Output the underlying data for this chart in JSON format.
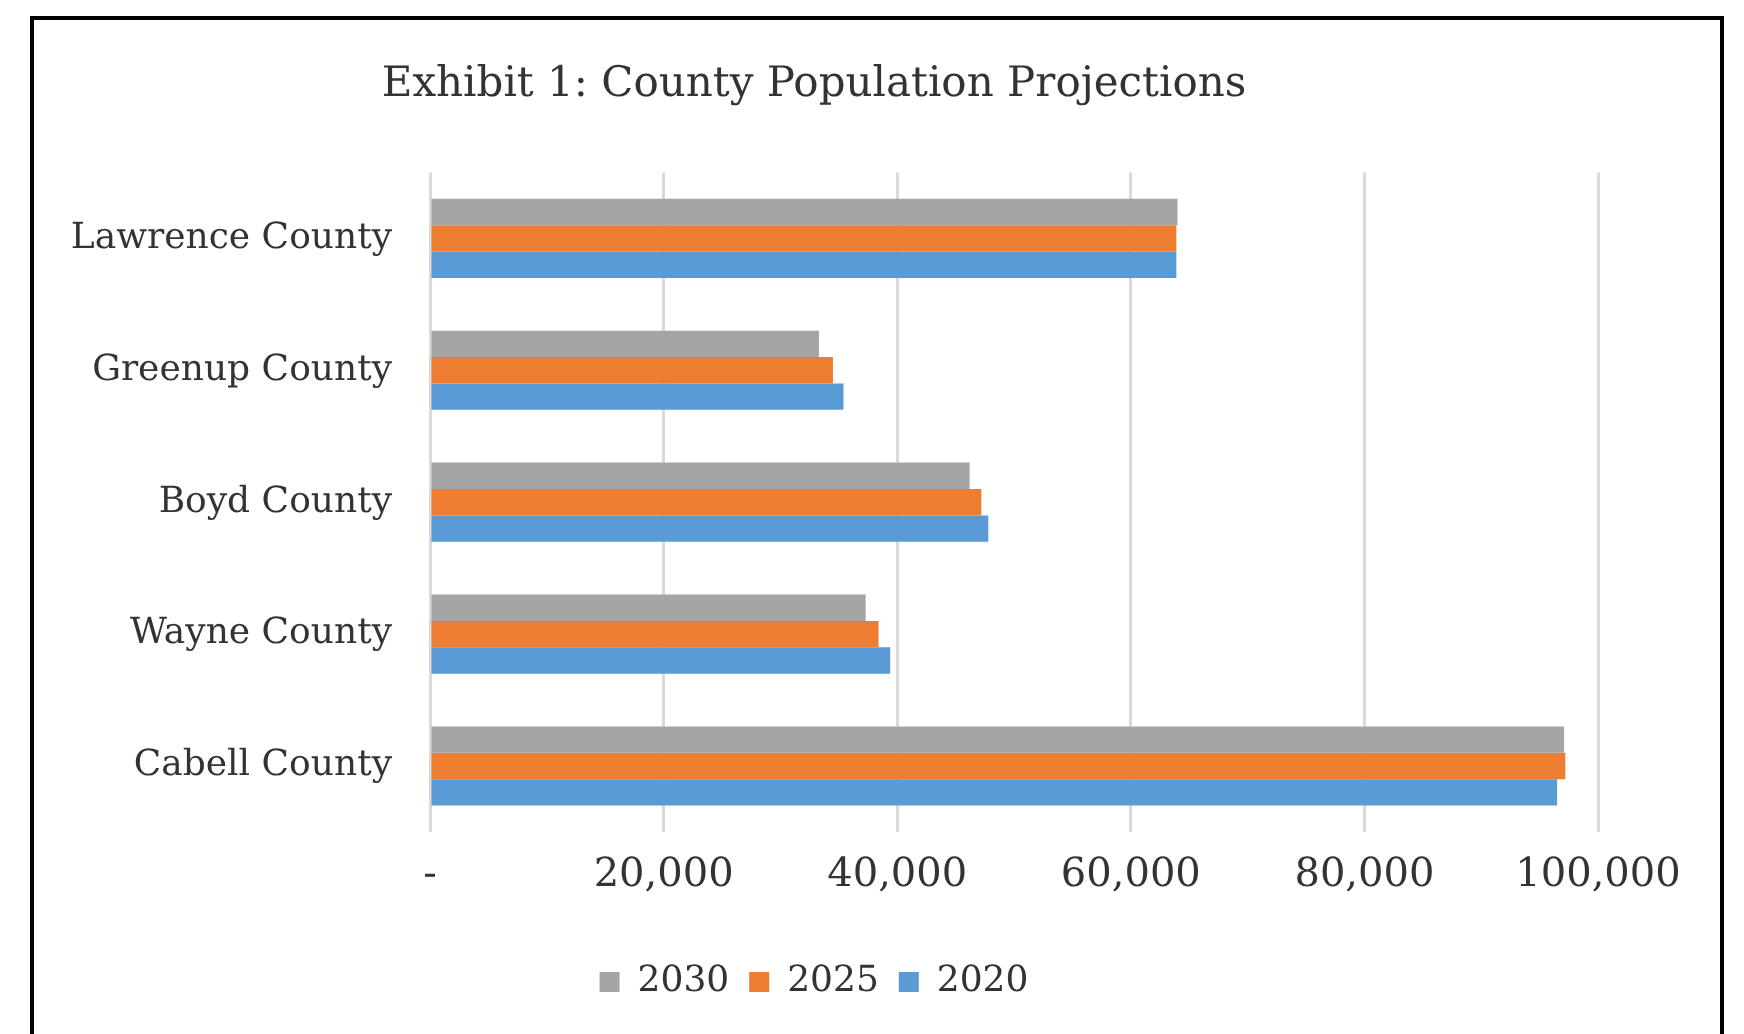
{
  "chart_data": {
    "type": "bar",
    "orientation": "horizontal",
    "title": "Exhibit 1: County Population Projections",
    "categories": [
      "Lawrence County",
      "Greenup County",
      "Boyd County",
      "Wayne County",
      "Cabell County"
    ],
    "series": [
      {
        "name": "2030",
        "color": "#a5a5a5",
        "values": [
          64000,
          33300,
          46200,
          37300,
          97100
        ]
      },
      {
        "name": "2025",
        "color": "#ed7d31",
        "values": [
          63900,
          34500,
          47200,
          38400,
          97200
        ]
      },
      {
        "name": "2020",
        "color": "#5b9bd5",
        "values": [
          63900,
          35400,
          47800,
          39400,
          96500
        ]
      }
    ],
    "xlim": [
      0,
      100000
    ],
    "xticks": [
      {
        "value": 0,
        "label": "-"
      },
      {
        "value": 20000,
        "label": "20,000"
      },
      {
        "value": 40000,
        "label": "40,000"
      },
      {
        "value": 60000,
        "label": "60,000"
      },
      {
        "value": 80000,
        "label": "80,000"
      },
      {
        "value": 100000,
        "label": "100,000"
      }
    ],
    "grid": "x",
    "legend": "bottom"
  }
}
